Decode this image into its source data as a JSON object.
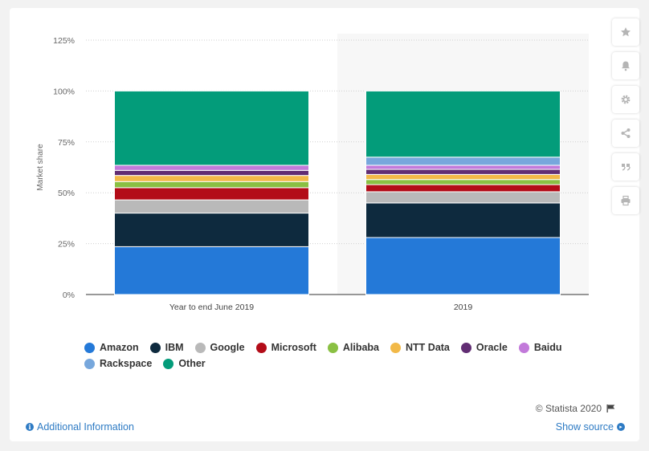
{
  "chart_data": {
    "type": "bar",
    "stacked": true,
    "categories": [
      "Year to end June 2019",
      "2019"
    ],
    "ylabel": "Market share",
    "yticks": [
      "0%",
      "25%",
      "50%",
      "75%",
      "100%",
      "125%"
    ],
    "ylim": [
      0,
      125
    ],
    "series": [
      {
        "name": "Amazon",
        "color": "#2479d8",
        "values": [
          23.5,
          28
        ]
      },
      {
        "name": "IBM",
        "color": "#0e2a3e",
        "values": [
          16.5,
          17
        ]
      },
      {
        "name": "Google",
        "color": "#b9b9b9",
        "values": [
          6.5,
          5.5
        ]
      },
      {
        "name": "Microsoft",
        "color": "#b30c18",
        "values": [
          6,
          3.5
        ]
      },
      {
        "name": "Alibaba",
        "color": "#8ac043",
        "values": [
          3,
          2.5
        ]
      },
      {
        "name": "NTT Data",
        "color": "#f2b948",
        "values": [
          3,
          2.5
        ]
      },
      {
        "name": "Oracle",
        "color": "#612d73",
        "values": [
          2.5,
          2.5
        ]
      },
      {
        "name": "Baidu",
        "color": "#c27ada",
        "values": [
          2.5,
          2
        ]
      },
      {
        "name": "Rackspace",
        "color": "#77a7dc",
        "values": [
          0,
          4
        ]
      },
      {
        "name": "Other",
        "color": "#039c7a",
        "values": [
          36.5,
          32.5
        ]
      }
    ],
    "grid": true,
    "legend_position": "bottom"
  },
  "legend": {
    "row1": [
      {
        "label": "Amazon",
        "color": "#2479d8"
      },
      {
        "label": "IBM",
        "color": "#0e2a3e"
      },
      {
        "label": "Google",
        "color": "#b9b9b9"
      },
      {
        "label": "Microsoft",
        "color": "#b30c18"
      },
      {
        "label": "Alibaba",
        "color": "#8ac043"
      },
      {
        "label": "NTT Data",
        "color": "#f2b948"
      },
      {
        "label": "Oracle",
        "color": "#612d73"
      },
      {
        "label": "Baidu",
        "color": "#c27ada"
      }
    ],
    "row2": [
      {
        "label": "Rackspace",
        "color": "#77a7dc"
      },
      {
        "label": "Other",
        "color": "#039c7a"
      }
    ]
  },
  "sidebar": {
    "buttons": [
      "star-icon",
      "bell-icon",
      "gear-icon",
      "share-icon",
      "quote-icon",
      "print-icon"
    ]
  },
  "footer": {
    "credit": "© Statista 2020",
    "additional_info": "Additional Information",
    "show_source": "Show source"
  },
  "colors": {
    "link": "#2e7bc4",
    "highlight_bg": "#f7f7f7"
  }
}
